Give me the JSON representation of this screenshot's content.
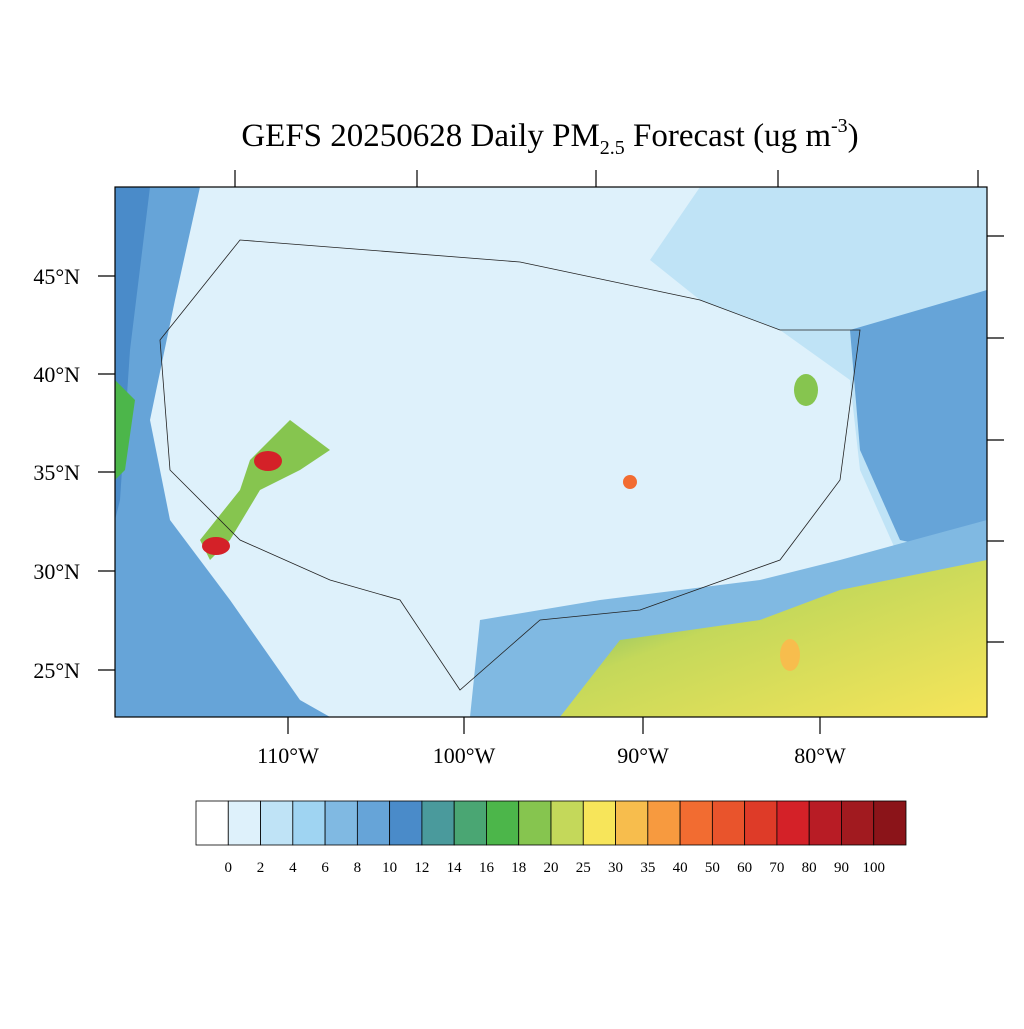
{
  "header": {
    "title_main": "GEFS 20250628 Daily PM",
    "title_sub": "2.5",
    "title_mid": " Forecast (ug m",
    "title_sup": "-3",
    "title_end": ")"
  },
  "map": {
    "lat_labels": [
      "45°N",
      "40°N",
      "35°N",
      "30°N",
      "25°N"
    ],
    "lon_labels": [
      "110°W",
      "100°W",
      "90°W",
      "80°W"
    ]
  },
  "colorbar": {
    "levels": [
      0,
      2,
      4,
      6,
      8,
      10,
      12,
      14,
      16,
      18,
      20,
      25,
      30,
      35,
      40,
      50,
      60,
      70,
      80,
      90,
      100
    ],
    "colors": [
      "#ffffff",
      "#def1fb",
      "#bfe3f6",
      "#9fd4f2",
      "#80b9e2",
      "#66a4d8",
      "#4a8bc9",
      "#4a9a9c",
      "#4aa673",
      "#4cb64a",
      "#86c54f",
      "#c4d85a",
      "#f7e55a",
      "#f7bd4d",
      "#f79a3f",
      "#f26c31",
      "#e9542c",
      "#de3b28",
      "#d42128",
      "#b81c25",
      "#a11a1f",
      "#8b1419"
    ]
  }
}
